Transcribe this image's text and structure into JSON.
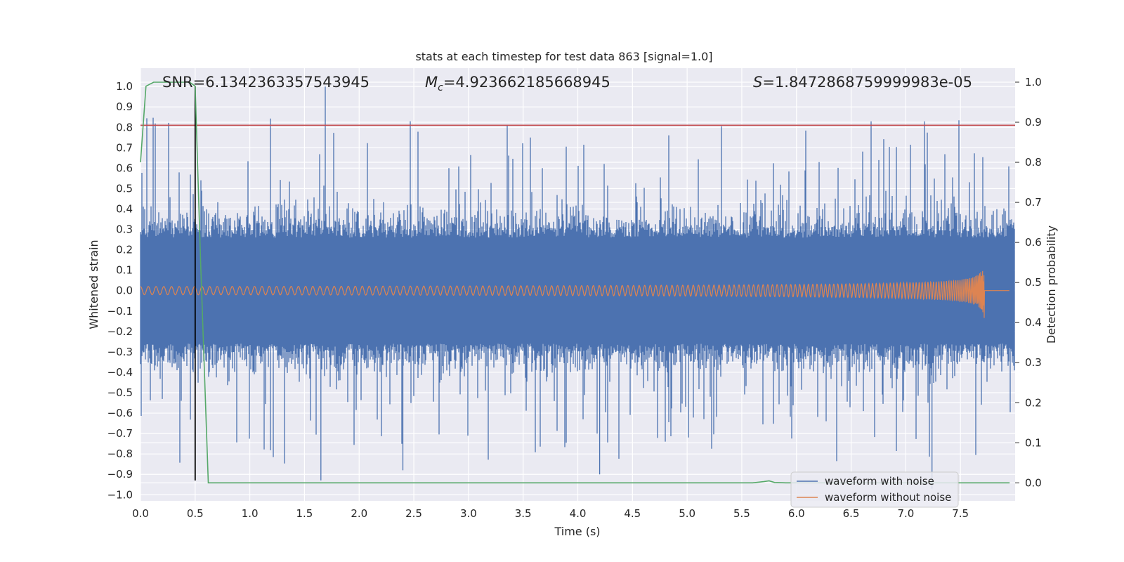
{
  "chart_data": {
    "type": "line",
    "title": "stats at each timestep for test data 863 [signal=1.0]",
    "xlabel": "Time (s)",
    "ylabel": "Whitened strain",
    "ylabel_right": "Detection probability",
    "xlim": [
      0.0,
      8.0
    ],
    "ylim": [
      -1.03,
      1.09
    ],
    "ylim_right": [
      -0.045,
      1.035
    ],
    "x_ticks": [
      "0.0",
      "0.5",
      "1.0",
      "1.5",
      "2.0",
      "2.5",
      "3.0",
      "3.5",
      "4.0",
      "4.5",
      "5.0",
      "5.5",
      "6.0",
      "6.5",
      "7.0",
      "7.5"
    ],
    "y_ticks": [
      "1.0",
      "0.9",
      "0.8",
      "0.7",
      "0.6",
      "0.5",
      "0.4",
      "0.3",
      "0.2",
      "0.1",
      "0.0",
      "−0.1",
      "−0.2",
      "−0.3",
      "−0.4",
      "−0.5",
      "−0.6",
      "−0.7",
      "−0.8",
      "−0.9",
      "−1.0"
    ],
    "y_ticks_right": [
      "1.0",
      "0.9",
      "0.8",
      "0.7",
      "0.6",
      "0.5",
      "0.4",
      "0.3",
      "0.2",
      "0.1",
      "0.0"
    ],
    "grid": true,
    "legend_position": "lower-right",
    "annotations": {
      "snr": "SNR=6.1342363357543945",
      "mc_symbol": "M",
      "mc_sub": "c",
      "mc_value": "=4.923662185668945",
      "s_symbol": "S",
      "s_value": "=1.8472868759999983e-05"
    },
    "series": [
      {
        "name": "waveform with noise",
        "color": "#4c72b0",
        "axis": "left",
        "description_level": "noise band roughly ±0.3 with peaks to ±1.0",
        "notable_peaks": [
          [
            1.69,
            1.0
          ],
          [
            1.65,
            -0.93
          ],
          [
            7.24,
            -0.97
          ],
          [
            4.2,
            -0.9
          ],
          [
            2.4,
            -0.88
          ]
        ]
      },
      {
        "name": "waveform without noise",
        "color": "#dd8452",
        "axis": "left",
        "chirp": {
          "start_amplitude": 0.02,
          "merger_time": 7.72,
          "peak_amplitude": 0.28
        }
      },
      {
        "color": "#55a868",
        "axis": "right",
        "x": [
          0.0,
          0.05,
          0.12,
          0.2,
          0.3,
          0.4,
          0.45,
          0.5,
          0.55,
          0.62,
          0.7,
          1.0,
          2.0,
          3.0,
          4.0,
          5.0,
          5.6,
          5.7,
          5.75,
          5.8,
          5.9,
          6.0,
          7.0,
          7.95
        ],
        "y": [
          0.8,
          0.99,
          1.0,
          1.0,
          1.0,
          1.0,
          1.0,
          0.99,
          0.55,
          0.0,
          0.0,
          0.0,
          0.0,
          0.0,
          0.0,
          0.0,
          0.0,
          0.003,
          0.005,
          0.001,
          0.0,
          0.0,
          0.0,
          0.0
        ]
      }
    ],
    "hlines": [
      {
        "y": 0.81,
        "color": "#c44e52",
        "axis": "left"
      }
    ],
    "vlines": [
      {
        "x": 0.5,
        "y_from": -0.93,
        "y_to": 1.0,
        "color": "#000000"
      }
    ]
  }
}
